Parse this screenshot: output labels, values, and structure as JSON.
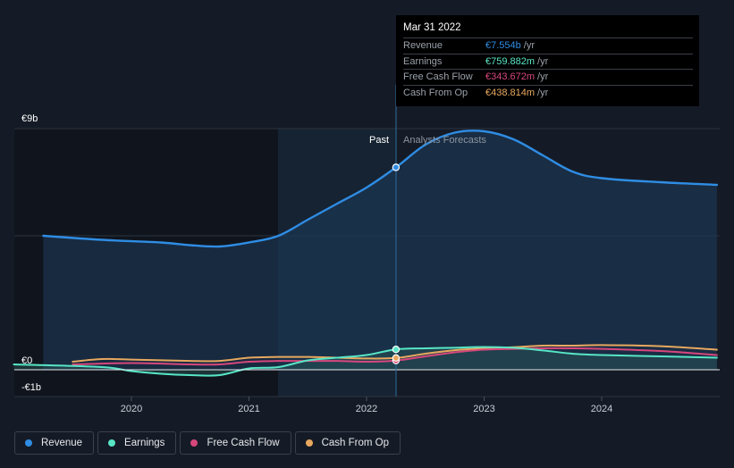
{
  "chart_data": {
    "type": "area",
    "y_axis": {
      "top_label": "€9b",
      "zero_label": "€0",
      "bottom_label": "-€1b",
      "ylim": [
        -1,
        9
      ]
    },
    "x_ticks": [
      "2020",
      "2021",
      "2022",
      "2023",
      "2024"
    ],
    "divider": {
      "past_label": "Past",
      "forecast_label": "Analysts Forecasts",
      "date": 2022.25
    },
    "series": [
      {
        "name": "Revenue",
        "color": "#2f8de4",
        "fill": true,
        "points": [
          [
            2019.25,
            5.0
          ],
          [
            2019.75,
            4.85
          ],
          [
            2020.25,
            4.75
          ],
          [
            2020.5,
            4.65
          ],
          [
            2020.75,
            4.6
          ],
          [
            2021.0,
            4.75
          ],
          [
            2021.25,
            5.0
          ],
          [
            2021.5,
            5.6
          ],
          [
            2021.75,
            6.2
          ],
          [
            2022.0,
            6.8
          ],
          [
            2022.25,
            7.554
          ],
          [
            2022.5,
            8.4
          ],
          [
            2022.75,
            8.85
          ],
          [
            2023.0,
            8.9
          ],
          [
            2023.25,
            8.6
          ],
          [
            2023.5,
            8.0
          ],
          [
            2023.75,
            7.4
          ],
          [
            2024.0,
            7.15
          ],
          [
            2024.5,
            7.0
          ],
          [
            2024.98,
            6.9
          ]
        ]
      },
      {
        "name": "Earnings",
        "color": "#58e6c6",
        "fill": true,
        "points": [
          [
            2019.0,
            0.2
          ],
          [
            2019.75,
            0.1
          ],
          [
            2020.0,
            -0.05
          ],
          [
            2020.25,
            -0.15
          ],
          [
            2020.5,
            -0.2
          ],
          [
            2020.75,
            -0.2
          ],
          [
            2021.0,
            0.05
          ],
          [
            2021.25,
            0.1
          ],
          [
            2021.5,
            0.35
          ],
          [
            2021.75,
            0.45
          ],
          [
            2022.0,
            0.55
          ],
          [
            2022.25,
            0.76
          ],
          [
            2022.5,
            0.8
          ],
          [
            2022.75,
            0.82
          ],
          [
            2023.0,
            0.85
          ],
          [
            2023.25,
            0.82
          ],
          [
            2023.5,
            0.72
          ],
          [
            2023.75,
            0.6
          ],
          [
            2024.0,
            0.55
          ],
          [
            2024.5,
            0.5
          ],
          [
            2024.98,
            0.45
          ]
        ]
      },
      {
        "name": "Free Cash Flow",
        "color": "#d6477c",
        "fill": false,
        "points": [
          [
            2019.5,
            0.2
          ],
          [
            2020.0,
            0.25
          ],
          [
            2020.5,
            0.2
          ],
          [
            2020.75,
            0.2
          ],
          [
            2021.0,
            0.3
          ],
          [
            2021.25,
            0.33
          ],
          [
            2021.5,
            0.33
          ],
          [
            2021.75,
            0.33
          ],
          [
            2022.0,
            0.3
          ],
          [
            2022.25,
            0.344
          ],
          [
            2022.5,
            0.5
          ],
          [
            2022.75,
            0.65
          ],
          [
            2023.0,
            0.75
          ],
          [
            2023.25,
            0.78
          ],
          [
            2023.5,
            0.8
          ],
          [
            2023.75,
            0.8
          ],
          [
            2024.0,
            0.78
          ],
          [
            2024.5,
            0.7
          ],
          [
            2024.98,
            0.55
          ]
        ]
      },
      {
        "name": "Cash From Op",
        "color": "#e8a85f",
        "fill": false,
        "points": [
          [
            2019.5,
            0.3
          ],
          [
            2019.75,
            0.4
          ],
          [
            2020.0,
            0.38
          ],
          [
            2020.5,
            0.33
          ],
          [
            2020.75,
            0.33
          ],
          [
            2021.0,
            0.45
          ],
          [
            2021.25,
            0.48
          ],
          [
            2021.5,
            0.48
          ],
          [
            2021.75,
            0.45
          ],
          [
            2022.0,
            0.42
          ],
          [
            2022.25,
            0.439
          ],
          [
            2022.5,
            0.6
          ],
          [
            2022.75,
            0.73
          ],
          [
            2023.0,
            0.8
          ],
          [
            2023.25,
            0.84
          ],
          [
            2023.5,
            0.9
          ],
          [
            2023.75,
            0.9
          ],
          [
            2024.0,
            0.92
          ],
          [
            2024.5,
            0.88
          ],
          [
            2024.98,
            0.75
          ]
        ]
      }
    ]
  },
  "tooltip": {
    "date": "Mar 31 2022",
    "rows": [
      {
        "label": "Revenue",
        "value": "€7.554b",
        "unit": "/yr",
        "color": "#2f8de4"
      },
      {
        "label": "Earnings",
        "value": "€759.882m",
        "unit": "/yr",
        "color": "#58e6c6"
      },
      {
        "label": "Free Cash Flow",
        "value": "€343.672m",
        "unit": "/yr",
        "color": "#d6477c"
      },
      {
        "label": "Cash From Op",
        "value": "€438.814m",
        "unit": "/yr",
        "color": "#e8a85f"
      }
    ]
  },
  "legend": [
    {
      "label": "Revenue",
      "color": "#2f8de4"
    },
    {
      "label": "Earnings",
      "color": "#58e6c6"
    },
    {
      "label": "Free Cash Flow",
      "color": "#d6477c"
    },
    {
      "label": "Cash From Op",
      "color": "#e8a85f"
    }
  ]
}
